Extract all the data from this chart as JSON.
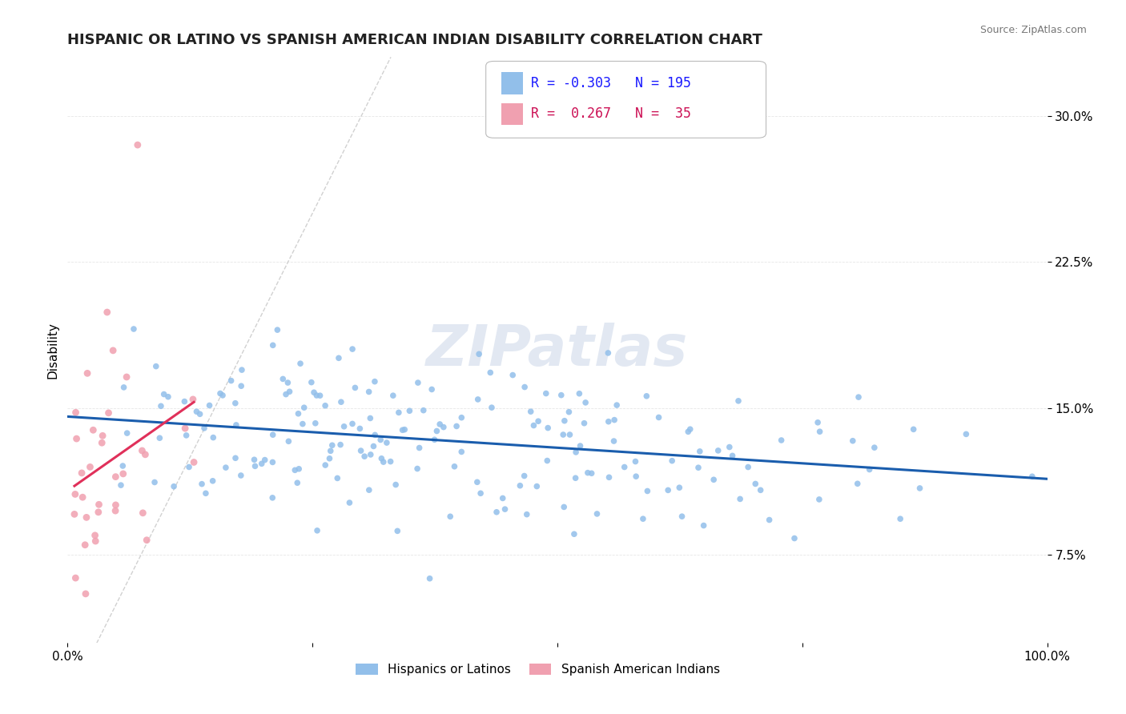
{
  "title": "HISPANIC OR LATINO VS SPANISH AMERICAN INDIAN DISABILITY CORRELATION CHART",
  "source": "Source: ZipAtlas.com",
  "ylabel": "Disability",
  "xlim": [
    0,
    1.0
  ],
  "ylim": [
    0.03,
    0.33
  ],
  "xtick_positions": [
    0.0,
    0.25,
    0.5,
    0.75,
    1.0
  ],
  "xtick_labels": [
    "0.0%",
    "",
    "",
    "",
    "100.0%"
  ],
  "ytick_values": [
    0.075,
    0.15,
    0.225,
    0.3
  ],
  "ytick_labels": [
    "7.5%",
    "15.0%",
    "22.5%",
    "30.0%"
  ],
  "blue_R": -0.303,
  "blue_N": 195,
  "pink_R": 0.267,
  "pink_N": 35,
  "blue_color": "#92BFEA",
  "pink_color": "#F0A0B0",
  "blue_line_color": "#1A5DAD",
  "pink_line_color": "#E0305A",
  "ref_line_color": "#CCCCCC",
  "watermark": "ZIPatlas",
  "watermark_color": "#CBD6E8",
  "legend_blue_label": "Hispanics or Latinos",
  "legend_pink_label": "Spanish American Indians",
  "title_fontsize": 13,
  "tick_fontsize": 11,
  "source_fontsize": 9
}
